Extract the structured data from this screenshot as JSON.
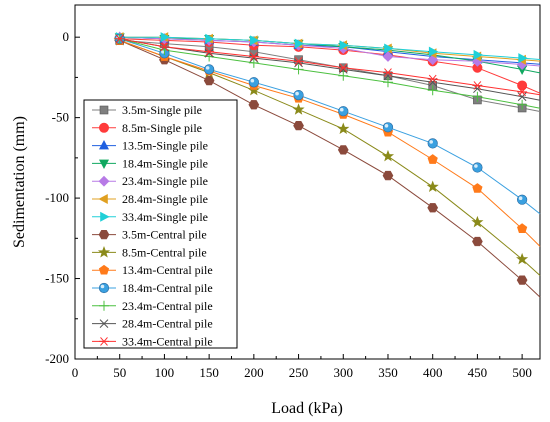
{
  "chart_data": {
    "type": "line",
    "xlabel": "Load (kPa)",
    "ylabel": "Sedimentation (mm)",
    "xlim": [
      0,
      520
    ],
    "ylim": [
      -200,
      20
    ],
    "x_ticks": [
      0,
      50,
      100,
      150,
      200,
      250,
      300,
      350,
      400,
      450,
      500
    ],
    "y_ticks": [
      0,
      -50,
      -100,
      -150,
      -200
    ],
    "grid": false,
    "legend_position": "left",
    "x": [
      50,
      100,
      150,
      200,
      250,
      300,
      350,
      400,
      450,
      500
    ],
    "series": [
      {
        "name": "3.5m-Single pile",
        "color": "#7f7f7f",
        "marker": "square",
        "values": [
          -2,
          -4,
          -6,
          -9,
          -14,
          -19,
          -24,
          -30,
          -39,
          -44
        ]
      },
      {
        "name": "8.5m-Single pile",
        "color": "#ff3b3b",
        "marker": "circle",
        "values": [
          -1,
          -2,
          -3,
          -5,
          -6,
          -8,
          -11,
          -15,
          -19,
          -30
        ]
      },
      {
        "name": "13.5m-Single pile",
        "color": "#1f5fe0",
        "marker": "triangle-up",
        "values": [
          0,
          -1,
          -2,
          -3,
          -5,
          -6,
          -9,
          -12,
          -14,
          -16
        ]
      },
      {
        "name": "18.4m-Single pile",
        "color": "#10a860",
        "marker": "triangle-down",
        "values": [
          0,
          -1,
          -1,
          -2,
          -4,
          -6,
          -8,
          -11,
          -15,
          -20
        ]
      },
      {
        "name": "23.4m-Single pile",
        "color": "#b77ae6",
        "marker": "diamond",
        "values": [
          0,
          -1,
          -2,
          -3,
          -5,
          -7,
          -12,
          -14,
          -15,
          -17
        ]
      },
      {
        "name": "28.4m-Single pile",
        "color": "#e0a020",
        "marker": "triangle-left",
        "values": [
          0,
          0,
          -1,
          -2,
          -4,
          -5,
          -7,
          -10,
          -12,
          -14
        ]
      },
      {
        "name": "33.4m-Single pile",
        "color": "#20d0d8",
        "marker": "triangle-right",
        "values": [
          0,
          0,
          -1,
          -2,
          -4,
          -5,
          -7,
          -9,
          -11,
          -13
        ]
      },
      {
        "name": "3.5m-Central pile",
        "color": "#8b4a3c",
        "marker": "hexagon",
        "values": [
          -2,
          -14,
          -27,
          -42,
          -55,
          -70,
          -86,
          -106,
          -127,
          -151
        ]
      },
      {
        "name": "8.5m-Central pile",
        "color": "#8a8a1a",
        "marker": "star",
        "values": [
          -2,
          -12,
          -22,
          -33,
          -45,
          -57,
          -74,
          -93,
          -115,
          -138
        ]
      },
      {
        "name": "13.4m-Central pile",
        "color": "#ff7a1a",
        "marker": "pentagon",
        "values": [
          -2,
          -12,
          -21,
          -30,
          -38,
          -48,
          -59,
          -76,
          -94,
          -119
        ]
      },
      {
        "name": "18.4m-Central pile",
        "color": "#3aa0e0",
        "marker": "ball",
        "values": [
          -1,
          -10,
          -20,
          -28,
          -36,
          -46,
          -56,
          -66,
          -81,
          -101
        ]
      },
      {
        "name": "23.4m-Central pile",
        "color": "#4cc040",
        "marker": "plus",
        "values": [
          -1,
          -8,
          -12,
          -16,
          -20,
          -24,
          -28,
          -33,
          -37,
          -42
        ]
      },
      {
        "name": "28.4m-Central pile",
        "color": "#555555",
        "marker": "x",
        "values": [
          -1,
          -6,
          -10,
          -13,
          -16,
          -20,
          -24,
          -28,
          -32,
          -37
        ]
      },
      {
        "name": "33.4m-Central pile",
        "color": "#ff3030",
        "marker": "asterisk",
        "values": [
          -1,
          -6,
          -9,
          -12,
          -15,
          -19,
          -22,
          -26,
          -30,
          -34
        ]
      }
    ]
  }
}
